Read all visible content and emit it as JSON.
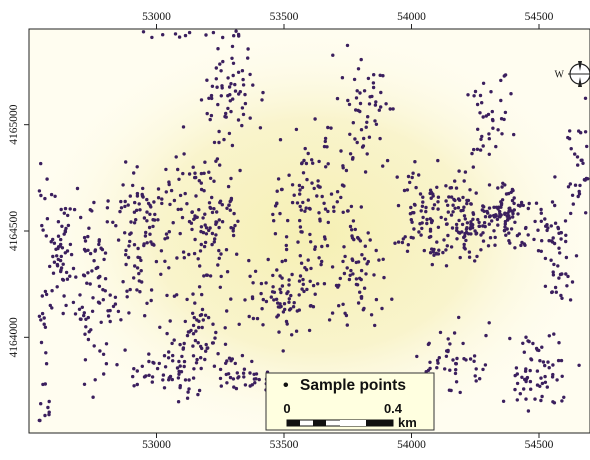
{
  "map": {
    "x_axis": {
      "ticks": [
        53000,
        53500,
        54000,
        54500
      ],
      "tick_labels": [
        "53000",
        "53500",
        "54000",
        "54500"
      ],
      "range": [
        52500,
        54700
      ]
    },
    "y_axis": {
      "ticks": [
        4164000,
        4164500,
        4165000
      ],
      "tick_labels": [
        "4164000",
        "4164500",
        "4165000"
      ],
      "range": [
        4163550,
        4165450
      ]
    },
    "background": {
      "base_color": "#fffdf0",
      "hotspot_color": "#f6f0b4",
      "hotspot_center": [
        53620,
        4164480
      ]
    },
    "points": {
      "color": "#3b1f5e",
      "clusters": [
        {
          "center": [
            52620,
            4164380
          ],
          "spread": [
            60,
            230
          ],
          "count": 55
        },
        {
          "center": [
            52760,
            4164250
          ],
          "spread": [
            90,
            330
          ],
          "count": 90
        },
        {
          "center": [
            52950,
            4164500
          ],
          "spread": [
            110,
            330
          ],
          "count": 110
        },
        {
          "center": [
            53050,
            4163830
          ],
          "spread": [
            120,
            110
          ],
          "count": 50
        },
        {
          "center": [
            53200,
            4164550
          ],
          "spread": [
            110,
            300
          ],
          "count": 120
        },
        {
          "center": [
            53150,
            4164000
          ],
          "spread": [
            100,
            160
          ],
          "count": 60
        },
        {
          "center": [
            53300,
            4165150
          ],
          "spread": [
            110,
            180
          ],
          "count": 60
        },
        {
          "center": [
            53500,
            4164200
          ],
          "spread": [
            130,
            200
          ],
          "count": 90
        },
        {
          "center": [
            53620,
            4164700
          ],
          "spread": [
            130,
            260
          ],
          "count": 100
        },
        {
          "center": [
            53780,
            4164300
          ],
          "spread": [
            110,
            220
          ],
          "count": 70
        },
        {
          "center": [
            53820,
            4165050
          ],
          "spread": [
            90,
            260
          ],
          "count": 55
        },
        {
          "center": [
            54050,
            4164600
          ],
          "spread": [
            90,
            180
          ],
          "count": 70
        },
        {
          "center": [
            54200,
            4164550
          ],
          "spread": [
            90,
            170
          ],
          "count": 80
        },
        {
          "center": [
            54370,
            4164560
          ],
          "spread": [
            90,
            130
          ],
          "count": 80
        },
        {
          "center": [
            54300,
            4165100
          ],
          "spread": [
            70,
            220
          ],
          "count": 40
        },
        {
          "center": [
            54500,
            4163850
          ],
          "spread": [
            110,
            170
          ],
          "count": 65
        },
        {
          "center": [
            54560,
            4164400
          ],
          "spread": [
            80,
            260
          ],
          "count": 60
        },
        {
          "center": [
            54650,
            4164800
          ],
          "spread": [
            50,
            220
          ],
          "count": 30
        },
        {
          "center": [
            54150,
            4163900
          ],
          "spread": [
            110,
            150
          ],
          "count": 50
        },
        {
          "center": [
            53350,
            4163800
          ],
          "spread": [
            110,
            90
          ],
          "count": 40
        }
      ],
      "edge_strips": [
        {
          "from": [
            52560,
            4163600
          ],
          "to": [
            52560,
            4164850
          ],
          "count": 30
        },
        {
          "from": [
            52950,
            4165420
          ],
          "to": [
            53350,
            4165420
          ],
          "count": 14
        }
      ],
      "diagonal_band": {
        "from": [
          54080,
          4164400
        ],
        "to": [
          54460,
          4164650
        ],
        "count": 45
      }
    },
    "compass": {
      "west_label": "W"
    },
    "legend": {
      "marker": "•",
      "label": "Sample points",
      "scale_start": "0",
      "scale_end": "0.4",
      "scale_unit": "km",
      "scale_length_km": 0.4
    }
  }
}
